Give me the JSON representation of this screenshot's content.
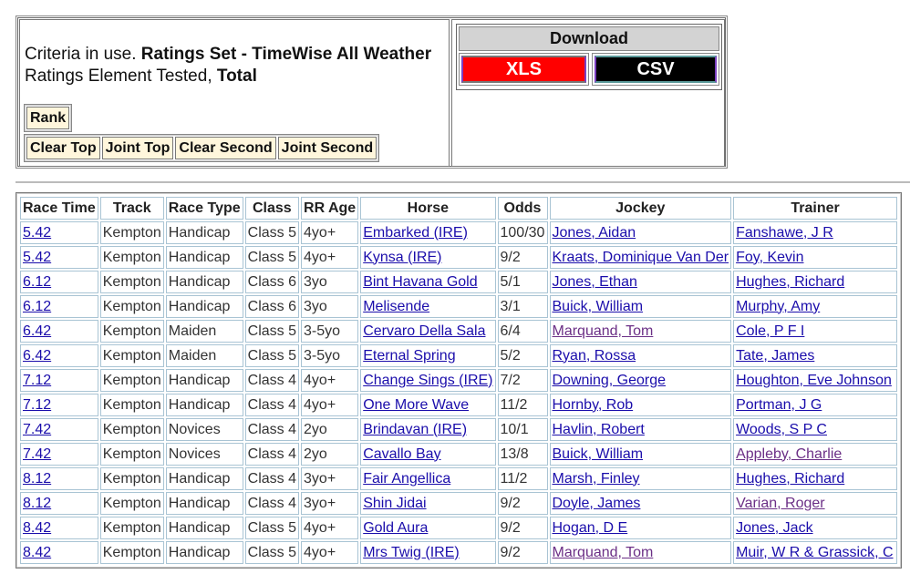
{
  "criteria": {
    "prefix": "Criteria in use. ",
    "ratings_set": "Ratings Set - TimeWise All Weather",
    "element_prefix": "Ratings Element Tested, ",
    "element": "Total"
  },
  "buttons": {
    "rank": "Rank",
    "clear_top": "Clear Top",
    "joint_top": "Joint Top",
    "clear_second": "Clear Second",
    "joint_second": "Joint Second"
  },
  "download": {
    "title": "Download",
    "xls": "XLS",
    "csv": "CSV",
    "colors": {
      "xls": "#ff0000",
      "csv": "#000000"
    }
  },
  "table": {
    "headers": [
      "Race Time",
      "Track",
      "Race Type",
      "Class",
      "RR Age",
      "Horse",
      "Odds",
      "Jockey",
      "Trainer"
    ],
    "rows": [
      [
        "5.42",
        "Kempton",
        "Handicap",
        "Class 5",
        "4yo+",
        "Embarked (IRE)",
        "100/30",
        "Jones, Aidan",
        "Fanshawe, J R"
      ],
      [
        "5.42",
        "Kempton",
        "Handicap",
        "Class 5",
        "4yo+",
        "Kynsa (IRE)",
        "9/2",
        "Kraats, Dominique Van Der",
        "Foy, Kevin"
      ],
      [
        "6.12",
        "Kempton",
        "Handicap",
        "Class 6",
        "3yo",
        "Bint Havana Gold",
        "5/1",
        "Jones, Ethan",
        "Hughes, Richard"
      ],
      [
        "6.12",
        "Kempton",
        "Handicap",
        "Class 6",
        "3yo",
        "Melisende",
        "3/1",
        "Buick, William",
        "Murphy, Amy"
      ],
      [
        "6.42",
        "Kempton",
        "Maiden",
        "Class 5",
        "3-5yo",
        "Cervaro Della Sala",
        "6/4",
        "Marquand, Tom",
        "Cole, P F I"
      ],
      [
        "6.42",
        "Kempton",
        "Maiden",
        "Class 5",
        "3-5yo",
        "Eternal Spring",
        "5/2",
        "Ryan, Rossa",
        "Tate, James"
      ],
      [
        "7.12",
        "Kempton",
        "Handicap",
        "Class 4",
        "4yo+",
        "Change Sings (IRE)",
        "7/2",
        "Downing, George",
        "Houghton, Eve Johnson"
      ],
      [
        "7.12",
        "Kempton",
        "Handicap",
        "Class 4",
        "4yo+",
        "One More Wave",
        "11/2",
        "Hornby, Rob",
        "Portman, J G"
      ],
      [
        "7.42",
        "Kempton",
        "Novices",
        "Class 4",
        "2yo",
        "Brindavan (IRE)",
        "10/1",
        "Havlin, Robert",
        "Woods, S P C"
      ],
      [
        "7.42",
        "Kempton",
        "Novices",
        "Class 4",
        "2yo",
        "Cavallo Bay",
        "13/8",
        "Buick, William",
        "Appleby, Charlie"
      ],
      [
        "8.12",
        "Kempton",
        "Handicap",
        "Class 4",
        "3yo+",
        "Fair Angellica",
        "11/2",
        "Marsh, Finley",
        "Hughes, Richard"
      ],
      [
        "8.12",
        "Kempton",
        "Handicap",
        "Class 4",
        "3yo+",
        "Shin Jidai",
        "9/2",
        "Doyle, James",
        "Varian, Roger"
      ],
      [
        "8.42",
        "Kempton",
        "Handicap",
        "Class 5",
        "4yo+",
        "Gold Aura",
        "9/2",
        "Hogan, D E",
        "Jones, Jack"
      ],
      [
        "8.42",
        "Kempton",
        "Handicap",
        "Class 5",
        "4yo+",
        "Mrs Twig (IRE)",
        "9/2",
        "Marquand, Tom",
        "Muir, W R & Grassick, C"
      ]
    ],
    "visited_jockeys": [
      "Marquand, Tom"
    ],
    "visited_trainers": [
      "Appleby, Charlie",
      "Varian, Roger"
    ]
  }
}
